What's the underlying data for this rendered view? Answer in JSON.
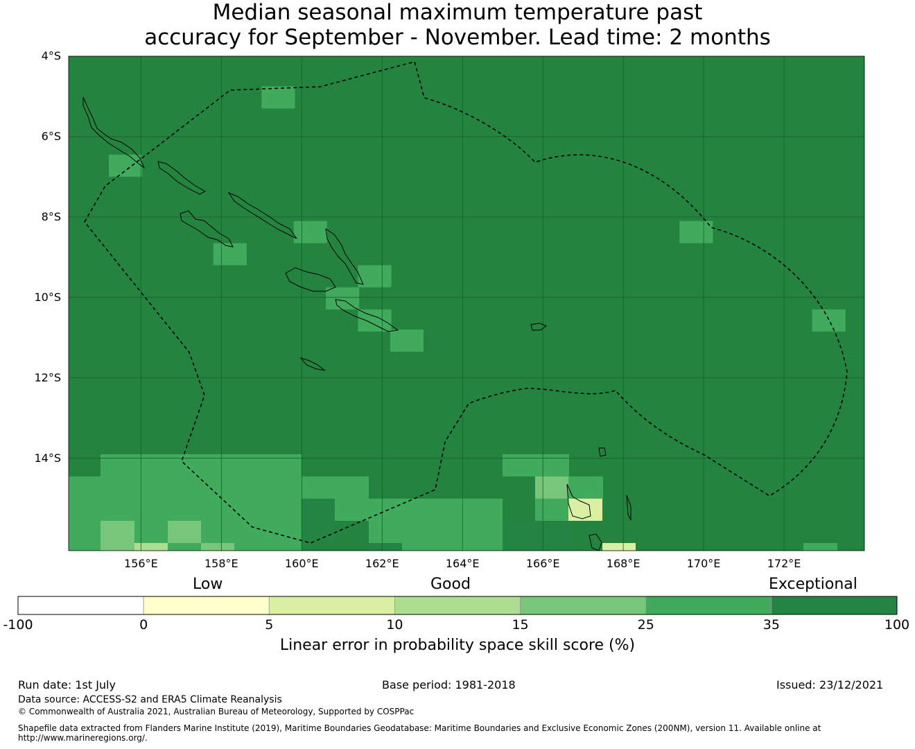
{
  "title": {
    "line1": "Median seasonal maximum temperature past",
    "line2": "accuracy for September - November. Lead time: 2 months"
  },
  "map": {
    "lat_labels": [
      "4°S",
      "6°S",
      "8°S",
      "10°S",
      "12°S",
      "14°S"
    ],
    "lon_labels": [
      "156°E",
      "158°E",
      "160°E",
      "162°E",
      "164°E",
      "166°E",
      "168°E",
      "170°E",
      "172°E"
    ],
    "extent": {
      "lon_min": 154.2,
      "lon_max": 174.0,
      "lat_max": -4.0,
      "lat_min": -16.3
    },
    "base_category_color": "#24843f",
    "cells": [
      {
        "lon": 159.0,
        "lat": -4.75,
        "cat": "25-35"
      },
      {
        "lon": 155.2,
        "lat": -6.45,
        "cat": "25-35"
      },
      {
        "lon": 159.8,
        "lat": -8.1,
        "cat": "25-35"
      },
      {
        "lon": 157.8,
        "lat": -8.65,
        "cat": "25-35"
      },
      {
        "lon": 161.4,
        "lat": -9.2,
        "cat": "25-35"
      },
      {
        "lon": 160.6,
        "lat": -9.75,
        "cat": "25-35"
      },
      {
        "lon": 161.4,
        "lat": -10.3,
        "cat": "25-35"
      },
      {
        "lon": 162.2,
        "lat": -10.8,
        "cat": "25-35"
      },
      {
        "lon": 169.4,
        "lat": -8.1,
        "cat": "25-35"
      },
      {
        "lon": 172.7,
        "lat": -10.3,
        "cat": "25-35"
      }
    ]
  },
  "colorbar": {
    "boundaries": [
      "-100",
      "0",
      "5",
      "10",
      "15",
      "25",
      "35",
      "100"
    ],
    "colors": [
      "#ffffff",
      "#ffffcc",
      "#d9f0a3",
      "#addd8e",
      "#78c679",
      "#41ab5d",
      "#238443"
    ],
    "category_labels": [
      "Low",
      "Good",
      "Exceptional"
    ],
    "label": "Linear error in probability space skill score (%)"
  },
  "footer": {
    "run_date": "Run date: 1st July",
    "base_period": "Base period: 1981-2018",
    "issued": "Issued: 23/12/2021",
    "data_source": "Data source: ACCESS-S2 and ERA5 Climate Reanalysis",
    "copyright": "© Commonwealth of Australia 2021, Australian Bureau of Meteorology, Supported by COSPPac",
    "shapefile": "Shapefile data extracted from Flanders Marine Institute (2019), Maritime Boundaries Geodatabase: Maritime Boundaries and Exclusive Economic Zones (200NM), version 11. Available online at http://www.marineregions.org/."
  }
}
